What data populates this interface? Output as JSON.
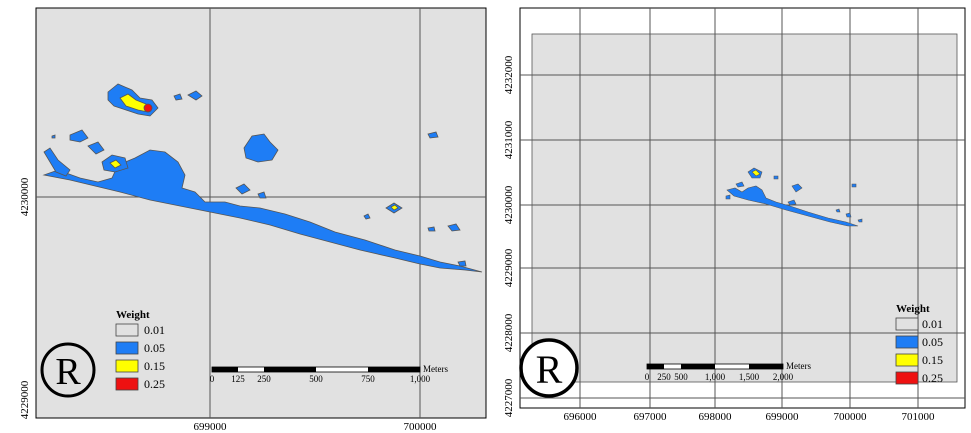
{
  "colors": {
    "background": "#e1e1e1",
    "class_001": "#e1e1e1",
    "class_005": "#1e7df5",
    "class_015": "#ffff00",
    "class_025": "#ee1111",
    "outline": "#555555"
  },
  "left_panel": {
    "y_ticks": [
      "4230000",
      "4229000"
    ],
    "x_ticks": [
      "699000",
      "700000"
    ],
    "legend": {
      "title": "Weight",
      "items": [
        {
          "label": "0.01",
          "color": "#e1e1e1"
        },
        {
          "label": "0.05",
          "color": "#1e7df5"
        },
        {
          "label": "0.15",
          "color": "#ffff00"
        },
        {
          "label": "0.25",
          "color": "#ee1111"
        }
      ]
    },
    "scalebar": {
      "unit": "Meters",
      "ticks": [
        "0",
        "125",
        "250",
        "500",
        "750",
        "1,000"
      ]
    },
    "logo_letter": "R"
  },
  "right_panel": {
    "y_ticks": [
      "4232000",
      "4231000",
      "4230000",
      "4229000",
      "4228000",
      "4227000"
    ],
    "x_ticks": [
      "696000",
      "697000",
      "698000",
      "699000",
      "700000",
      "701000"
    ],
    "legend": {
      "title": "Weight",
      "items": [
        {
          "label": "0.01",
          "color": "#e1e1e1"
        },
        {
          "label": "0.05",
          "color": "#1e7df5"
        },
        {
          "label": "0.15",
          "color": "#ffff00"
        },
        {
          "label": "0.25",
          "color": "#ee1111"
        }
      ]
    },
    "scalebar": {
      "unit": "Meters",
      "ticks": [
        "0",
        "250",
        "500",
        "1,000",
        "1,500",
        "2,000"
      ]
    },
    "logo_letter": "R"
  }
}
